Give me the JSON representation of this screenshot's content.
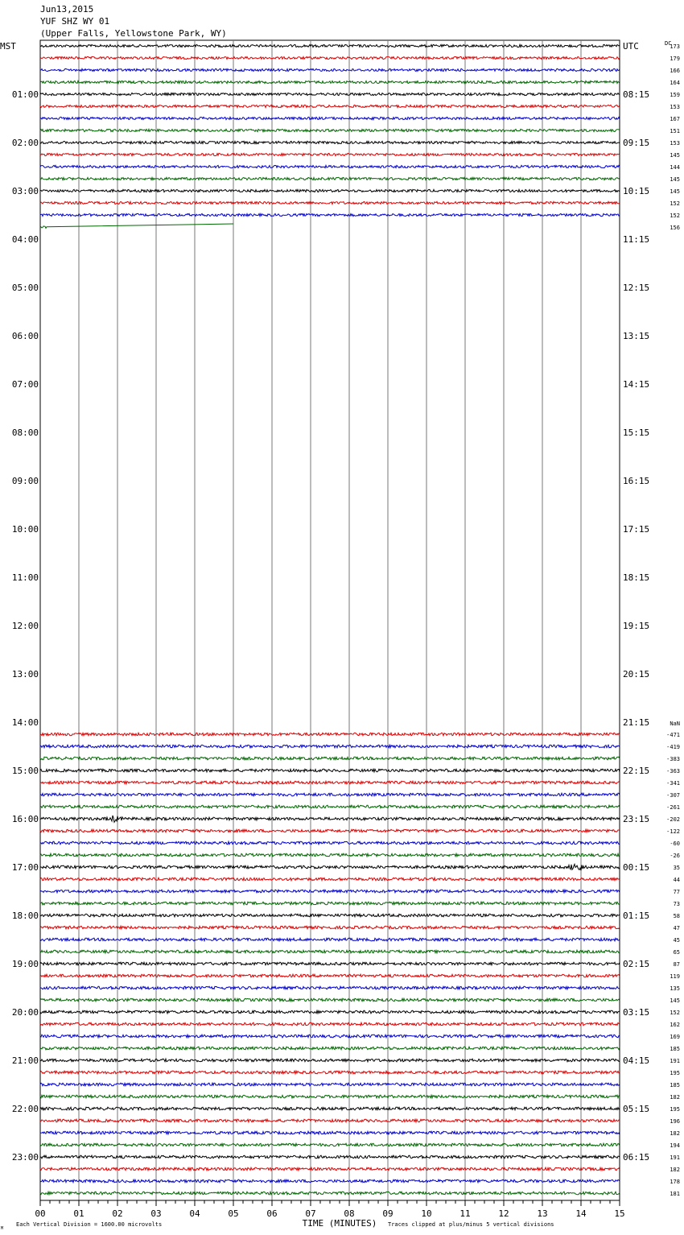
{
  "header": {
    "date": "Jun13,2015",
    "station": "YUF SHZ WY 01",
    "location": "(Upper Falls, Yellowstone Park, WY)"
  },
  "labels": {
    "left_tz": "MST",
    "right_tz": "UTC",
    "dc_header": "DC",
    "nan_header": "NaN",
    "x_axis_title": "TIME (MINUTES)",
    "footer_left": "Each Vertical Division = 1600.00 microvolts",
    "footer_right": "Traces clipped at plus/minus 5 vertical divisions",
    "corner_mark": "M"
  },
  "colors": {
    "trace_cycle": [
      "#000000",
      "#dd0000",
      "#0000cc",
      "#006600"
    ],
    "grid": "#777777",
    "border": "#000000"
  },
  "chart_data": {
    "type": "line",
    "description_free": true,
    "x_ticks": [
      "00",
      "01",
      "02",
      "03",
      "04",
      "05",
      "06",
      "07",
      "08",
      "09",
      "10",
      "11",
      "12",
      "13",
      "14",
      "15"
    ],
    "x_range_minutes": [
      0,
      15
    ],
    "row_interval_minutes": 15,
    "rows_total": 96,
    "mst_hour_labels": [
      "01:00",
      "02:00",
      "03:00",
      "04:00",
      "05:00",
      "06:00",
      "07:00",
      "08:00",
      "09:00",
      "10:00",
      "11:00",
      "12:00",
      "13:00",
      "14:00",
      "15:00",
      "16:00",
      "17:00",
      "18:00",
      "19:00",
      "20:00",
      "21:00",
      "22:00",
      "23:00"
    ],
    "utc_hour_labels": [
      "08:15",
      "09:15",
      "10:15",
      "11:15",
      "12:15",
      "13:15",
      "14:15",
      "15:15",
      "16:15",
      "17:15",
      "18:15",
      "19:15",
      "20:15",
      "21:15",
      "22:15",
      "23:15",
      "00:15",
      "01:15",
      "02:15",
      "03:15",
      "04:15",
      "05:15",
      "06:15"
    ],
    "morning_dc_values": [
      "173",
      "179",
      "166",
      "164",
      "159",
      "153",
      "167",
      "151",
      "153",
      "145",
      "144",
      "145",
      "145",
      "152",
      "152",
      "156"
    ],
    "afternoon_dc_values": [
      "-471",
      "-419",
      "-383",
      "-363",
      "-341",
      "-307",
      "-261",
      "-202",
      "-122",
      "-60",
      "-26",
      "35",
      "44",
      "77",
      "73",
      "58",
      "47",
      "45",
      "65",
      "87",
      "119",
      "135",
      "145",
      "152",
      "162",
      "169",
      "185",
      "191",
      "195",
      "185",
      "182",
      "195",
      "196",
      "182",
      "194",
      "191",
      "182",
      "178",
      "181"
    ],
    "morning_rows_complete": 15,
    "partial_row_end_minute": 5,
    "afternoon_start_row": 57,
    "events": [
      {
        "row": 64,
        "minute": 1.9,
        "amplitude": "small"
      },
      {
        "row": 68,
        "minute": 13.9,
        "amplitude": "medium"
      }
    ]
  }
}
